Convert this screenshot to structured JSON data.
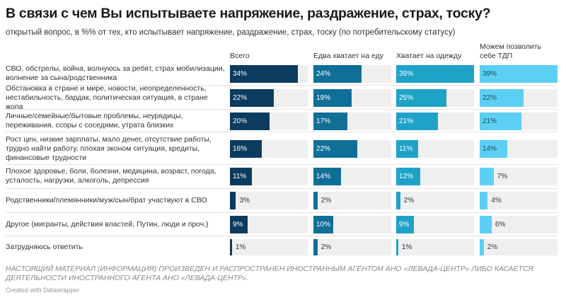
{
  "chart_data": {
    "type": "bar",
    "title": "В связи с чем Вы испытываете напряжение, раздражение, страх, тоску?",
    "subtitle": "открытый вопрос, в %% от тех, кто испытывает напряжение, раздражение, страх, тоску (по потребительскому статусу)",
    "unit": "%",
    "xlim": [
      0,
      39
    ],
    "categories": [
      "СВО, обстрелы, война, волнуюсь за ребят, страх мобилизации, волнение за сына/родственника",
      "Обстановка в стране и мире, новости, неопределенность, нестабильность, бардак, политическая ситуация, в стране жопа",
      "Личные/семейные/бытовые проблемы, неурядицы, переживания, ссоры с соседями, утрата близких",
      "Рост цен, низкие зарплаты, мало денег, отсутствие работы, трудно найти работу, плохая эконом ситуация, кредиты, финансовые трудности",
      "Плохое здоровье, боли, болезни, медицина, возраст, погода, усталость, нагрузки, алкоголь, депрессия",
      "Родственники/племянники/муж/сын/брат участвуют в СВО",
      "Другое (мигранты, действия властей, Путин, люди и проч.)",
      "Затрудняюсь ответить"
    ],
    "series": [
      {
        "name": "Всего",
        "color": "#0b3b5f",
        "values": [
          34,
          22,
          20,
          16,
          11,
          3,
          9,
          1
        ]
      },
      {
        "name": "Едва хватает на еду",
        "color": "#0f6f97",
        "values": [
          24,
          19,
          17,
          22,
          14,
          2,
          10,
          2
        ]
      },
      {
        "name": "Хватает на одежду",
        "color": "#1ea2c8",
        "values": [
          39,
          25,
          21,
          11,
          12,
          2,
          9,
          1
        ]
      },
      {
        "name": "Можем позволить себе ТДП",
        "color": "#5ccff4",
        "values": [
          39,
          22,
          21,
          14,
          7,
          4,
          6,
          2
        ]
      }
    ],
    "grid": false,
    "legend": "none"
  },
  "footer": {
    "note": "НАСТОЯЩИЙ МАТЕРИАЛ (ИНФОРМАЦИЯ) ПРОИЗВЕДЕН И РАСПРОСТРАНЕН ИНОСТРАННЫМ АГЕНТОМ АНО «ЛЕВАДА-ЦЕНТР» ЛИБО КАСАЕТСЯ ДЕЯТЕЛЬНОСТИ ИНОСТРАННОГО АГЕНТА АНО «ЛЕВАДА-ЦЕНТР».",
    "credit": "Created with Datawrapper"
  }
}
